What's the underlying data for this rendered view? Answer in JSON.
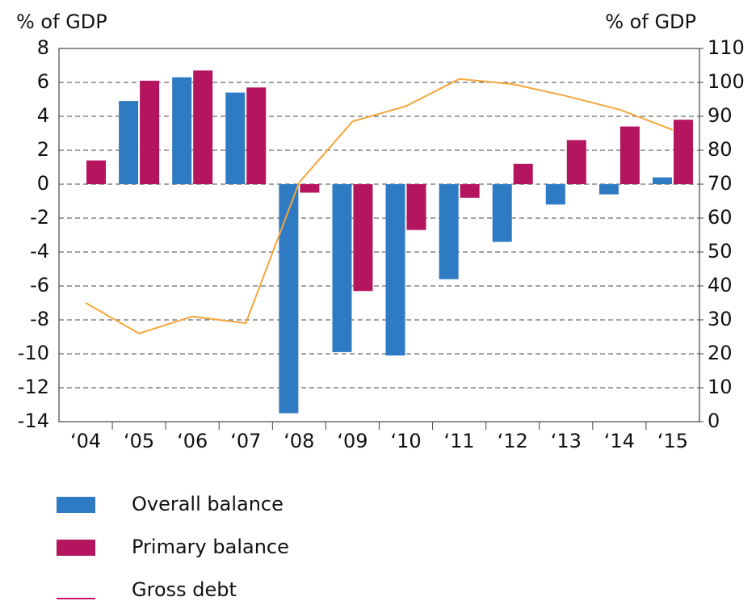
{
  "chart_data": {
    "type": "bar-line",
    "y_label": "% of GDP",
    "y2_label": "% of GDP",
    "categories": [
      "‘04",
      "‘05",
      "‘06",
      "‘07",
      "‘08",
      "‘09",
      "‘10",
      "‘11",
      "‘12",
      "‘13",
      "‘14",
      "‘15"
    ],
    "series": [
      {
        "name": "Overall balance",
        "type": "bar",
        "color": "#2e7bc4",
        "values": [
          0,
          4.9,
          6.3,
          5.4,
          -13.5,
          -9.9,
          -10.1,
          -5.6,
          -3.4,
          -1.2,
          -0.6,
          0.4
        ]
      },
      {
        "name": "Primary balance",
        "type": "bar",
        "color": "#b5145e",
        "values": [
          1.4,
          6.1,
          6.7,
          5.7,
          -0.5,
          -6.3,
          -2.7,
          -0.8,
          1.2,
          2.6,
          3.4,
          3.8
        ]
      },
      {
        "name": "Gross debt",
        "type": "line",
        "axis": "y2",
        "color": "#f5a63a",
        "legend_color": "#c2186b",
        "values": [
          35,
          26,
          31,
          29,
          70.5,
          88.5,
          93,
          101,
          99.5,
          96,
          92,
          86
        ]
      }
    ],
    "ylim": [
      -14,
      8
    ],
    "yticks": [
      -14,
      -12,
      -10,
      -8,
      -6,
      -4,
      -2,
      0,
      2,
      4,
      6,
      8
    ],
    "y2lim": [
      0,
      110
    ],
    "y2ticks": [
      0,
      10,
      20,
      30,
      40,
      50,
      60,
      70,
      80,
      90,
      100,
      110
    ],
    "grid": true
  }
}
